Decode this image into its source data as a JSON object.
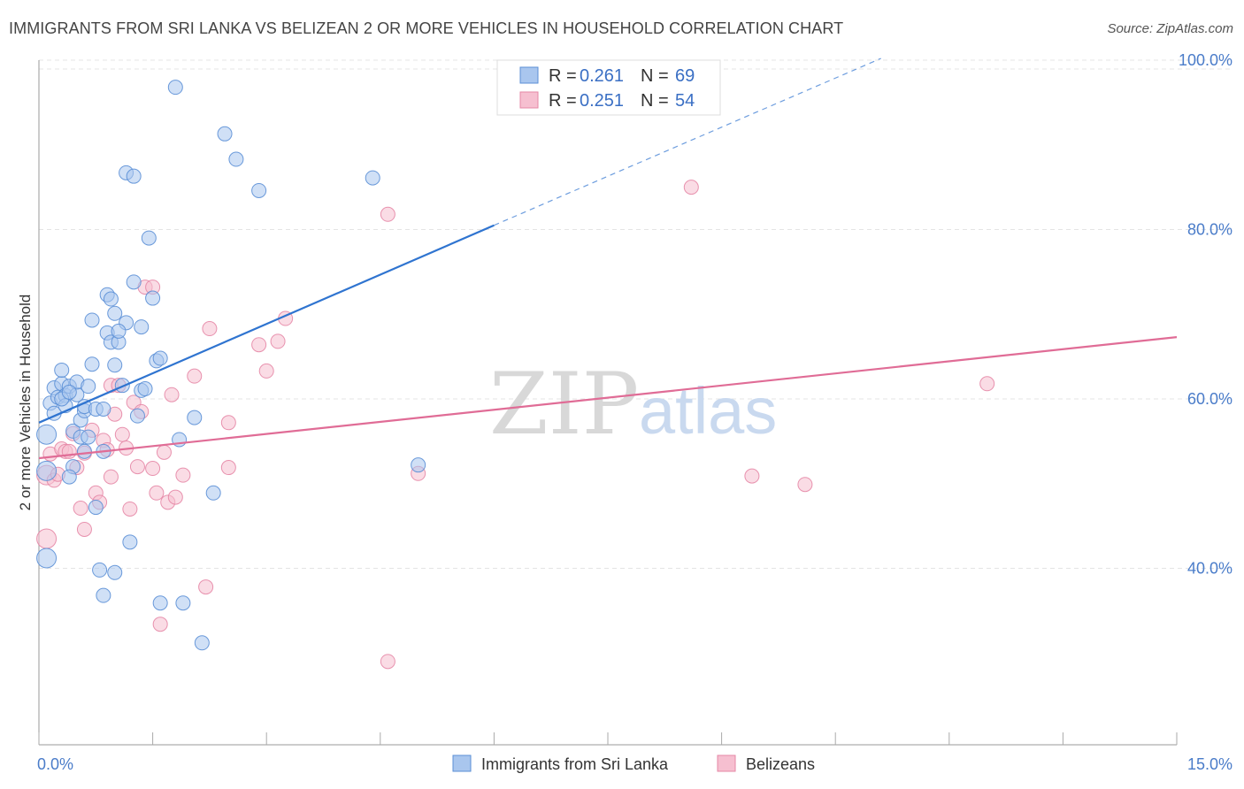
{
  "title": "IMMIGRANTS FROM SRI LANKA VS BELIZEAN 2 OR MORE VEHICLES IN HOUSEHOLD CORRELATION CHART",
  "source": "Source: ZipAtlas.com",
  "watermark": {
    "zip": "ZIP",
    "atlas": "atlas"
  },
  "colors": {
    "blue_fill": "#a9c6ee",
    "blue_stroke": "#5b8fd6",
    "blue_line": "#2f74d0",
    "pink_fill": "#f6bfd0",
    "pink_stroke": "#e587a6",
    "pink_line": "#e06c96",
    "grid": "#e4e4e4",
    "tick_text": "#4a7cc9"
  },
  "chart_data": {
    "type": "scatter",
    "xlabel": "",
    "ylabel": "2 or more Vehicles in Household",
    "xlim": [
      0,
      15
    ],
    "ylim": [
      20,
      102
    ],
    "x_tick_labels": [
      {
        "value": 0,
        "label": "0.0%"
      },
      {
        "value": 15,
        "label": "15.0%"
      }
    ],
    "y_tick_labels": [
      {
        "value": 40,
        "label": "40.0%"
      },
      {
        "value": 60,
        "label": "60.0%"
      },
      {
        "value": 80,
        "label": "80.0%"
      },
      {
        "value": 100,
        "label": "100.0%"
      }
    ],
    "legend": {
      "position": "top-center",
      "entries": [
        {
          "r_label": "R =",
          "r_value": "0.261",
          "n_label": "N =",
          "n_value": "69"
        },
        {
          "r_label": "R =",
          "r_value": "0.251",
          "n_label": "N =",
          "n_value": "54"
        }
      ]
    },
    "series": [
      {
        "name": "Immigrants from Sri Lanka",
        "color": "blue",
        "trend": {
          "x0": 0,
          "y0": 57.2,
          "x1": 6.0,
          "y1": 80.5,
          "dashed_to_x": 11.1,
          "dashed_to_y": 100.2
        },
        "points": [
          [
            0.1,
            55.8
          ],
          [
            0.1,
            51.5
          ],
          [
            0.1,
            41.2
          ],
          [
            0.15,
            59.5
          ],
          [
            0.2,
            58.3
          ],
          [
            0.2,
            61.3
          ],
          [
            0.25,
            60.2
          ],
          [
            0.3,
            61.8
          ],
          [
            0.3,
            63.4
          ],
          [
            0.35,
            60.4
          ],
          [
            0.35,
            59.2
          ],
          [
            0.4,
            61.5
          ],
          [
            0.45,
            56.2
          ],
          [
            0.5,
            60.5
          ],
          [
            0.45,
            52.0
          ],
          [
            0.4,
            50.8
          ],
          [
            0.55,
            57.5
          ],
          [
            0.6,
            58.6
          ],
          [
            0.6,
            59.1
          ],
          [
            0.55,
            55.5
          ],
          [
            0.6,
            53.8
          ],
          [
            0.65,
            55.5
          ],
          [
            0.7,
            64.1
          ],
          [
            0.7,
            69.3
          ],
          [
            0.75,
            58.8
          ],
          [
            0.75,
            47.2
          ],
          [
            0.8,
            39.8
          ],
          [
            0.85,
            53.8
          ],
          [
            0.85,
            36.8
          ],
          [
            0.85,
            58.8
          ],
          [
            0.9,
            72.3
          ],
          [
            0.9,
            67.8
          ],
          [
            0.95,
            71.8
          ],
          [
            0.95,
            66.7
          ],
          [
            1.0,
            70.1
          ],
          [
            1.0,
            39.5
          ],
          [
            1.05,
            66.7
          ],
          [
            1.1,
            61.6
          ],
          [
            1.15,
            86.7
          ],
          [
            1.15,
            69.0
          ],
          [
            1.2,
            43.1
          ],
          [
            1.25,
            86.3
          ],
          [
            1.25,
            73.8
          ],
          [
            1.3,
            58.0
          ],
          [
            1.35,
            61.0
          ],
          [
            1.35,
            68.5
          ],
          [
            1.4,
            61.2
          ],
          [
            1.45,
            79.0
          ],
          [
            1.5,
            71.9
          ],
          [
            1.55,
            64.5
          ],
          [
            1.6,
            64.8
          ],
          [
            1.6,
            35.9
          ],
          [
            1.8,
            96.8
          ],
          [
            1.85,
            55.2
          ],
          [
            1.9,
            35.9
          ],
          [
            2.05,
            57.8
          ],
          [
            2.15,
            31.2
          ],
          [
            2.3,
            48.9
          ],
          [
            2.45,
            91.3
          ],
          [
            2.6,
            88.3
          ],
          [
            2.9,
            84.6
          ],
          [
            4.4,
            86.1
          ],
          [
            5.0,
            52.2
          ],
          [
            0.5,
            62.0
          ],
          [
            0.65,
            61.5
          ],
          [
            1.0,
            64.0
          ],
          [
            0.3,
            60.0
          ],
          [
            0.4,
            60.8
          ],
          [
            1.05,
            68.0
          ]
        ]
      },
      {
        "name": "Belizeans",
        "color": "pink",
        "trend": {
          "x0": 0,
          "y0": 53.0,
          "x1": 15.0,
          "y1": 67.3
        },
        "points": [
          [
            0.1,
            51.0
          ],
          [
            0.1,
            43.5
          ],
          [
            0.15,
            53.5
          ],
          [
            0.2,
            50.4
          ],
          [
            0.25,
            51.1
          ],
          [
            0.3,
            54.1
          ],
          [
            0.35,
            53.8
          ],
          [
            0.45,
            55.9
          ],
          [
            0.5,
            51.9
          ],
          [
            0.55,
            47.1
          ],
          [
            0.6,
            53.6
          ],
          [
            0.6,
            44.6
          ],
          [
            0.7,
            56.3
          ],
          [
            0.75,
            48.9
          ],
          [
            0.8,
            47.8
          ],
          [
            0.85,
            55.1
          ],
          [
            0.9,
            54.0
          ],
          [
            0.95,
            61.6
          ],
          [
            0.95,
            50.8
          ],
          [
            1.0,
            58.2
          ],
          [
            1.05,
            61.6
          ],
          [
            1.1,
            55.8
          ],
          [
            1.15,
            54.2
          ],
          [
            1.2,
            47.0
          ],
          [
            1.25,
            59.6
          ],
          [
            1.3,
            52.0
          ],
          [
            1.35,
            58.5
          ],
          [
            1.4,
            73.2
          ],
          [
            1.5,
            51.8
          ],
          [
            1.55,
            48.9
          ],
          [
            1.6,
            33.4
          ],
          [
            1.65,
            53.7
          ],
          [
            1.7,
            47.8
          ],
          [
            1.75,
            60.5
          ],
          [
            1.8,
            48.4
          ],
          [
            1.9,
            51.0
          ],
          [
            2.05,
            62.7
          ],
          [
            2.2,
            37.8
          ],
          [
            2.25,
            68.3
          ],
          [
            2.5,
            57.2
          ],
          [
            2.5,
            51.9
          ],
          [
            2.9,
            66.4
          ],
          [
            3.0,
            63.3
          ],
          [
            3.15,
            66.8
          ],
          [
            3.25,
            69.5
          ],
          [
            4.6,
            81.8
          ],
          [
            4.6,
            29.0
          ],
          [
            5.0,
            51.2
          ],
          [
            8.6,
            85.0
          ],
          [
            9.4,
            50.9
          ],
          [
            10.1,
            49.9
          ],
          [
            12.5,
            61.8
          ],
          [
            0.4,
            53.8
          ],
          [
            1.5,
            73.2
          ]
        ]
      }
    ]
  }
}
